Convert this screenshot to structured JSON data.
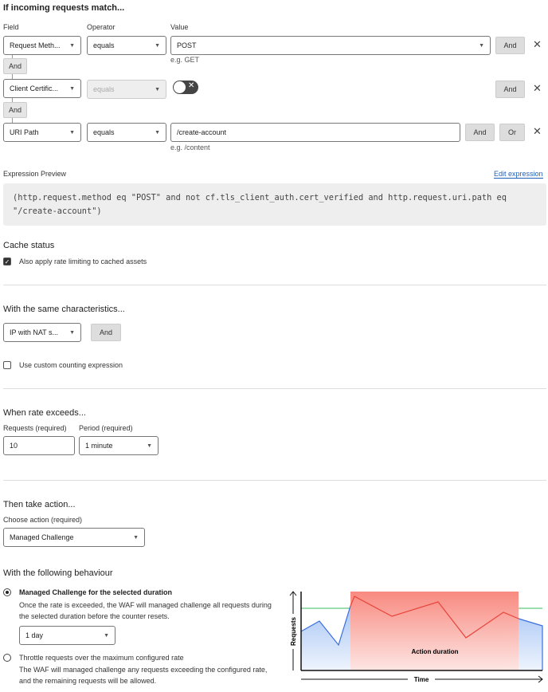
{
  "match": {
    "heading": "If incoming requests match...",
    "field_label": "Field",
    "operator_label": "Operator",
    "value_label": "Value",
    "rows": [
      {
        "field": "Request Meth...",
        "operator": "equals",
        "value": "POST",
        "hint": "e.g. GET"
      },
      {
        "field": "Client Certific...",
        "operator": "equals",
        "toggle": "off"
      },
      {
        "field": "URI Path",
        "operator": "equals",
        "value": "/create-account",
        "hint": "e.g. /content"
      }
    ],
    "and": "And",
    "or": "Or",
    "close": "✕"
  },
  "expression": {
    "label": "Expression Preview",
    "edit": "Edit expression",
    "text": "(http.request.method eq \"POST\" and not cf.tls_client_auth.cert_verified and http.request.uri.path eq \"/create-account\")"
  },
  "cache": {
    "heading": "Cache status",
    "checkbox": "Also apply rate limiting to cached assets",
    "checked": true
  },
  "characteristics": {
    "heading": "With the same characteristics...",
    "select": "IP with NAT s...",
    "and": "And",
    "custom": "Use custom counting expression",
    "custom_checked": false
  },
  "rate": {
    "heading": "When rate exceeds...",
    "requests_label": "Requests (required)",
    "requests": "10",
    "period_label": "Period (required)",
    "period": "1 minute"
  },
  "action": {
    "heading": "Then take action...",
    "choose_label": "Choose action (required)",
    "choose": "Managed Challenge"
  },
  "behaviour": {
    "heading": "With the following behaviour",
    "opt1_title": "Managed Challenge for the selected duration",
    "opt1_desc": "Once the rate is exceeded, the WAF will managed challenge all requests during the selected duration before the counter resets.",
    "duration": "1 day",
    "opt2_title": "Throttle requests over the maximum configured rate",
    "opt2_desc": "The WAF will managed challenge any requests exceeding the configured rate, and the remaining requests will be allowed.",
    "selected": 1
  },
  "diagram": {
    "y_label": "Requests",
    "x_label": "Time",
    "area_label": "Action duration",
    "colors": {
      "blue": "#3b6fe0",
      "red": "#e8443a",
      "green": "#5cc97a"
    }
  }
}
